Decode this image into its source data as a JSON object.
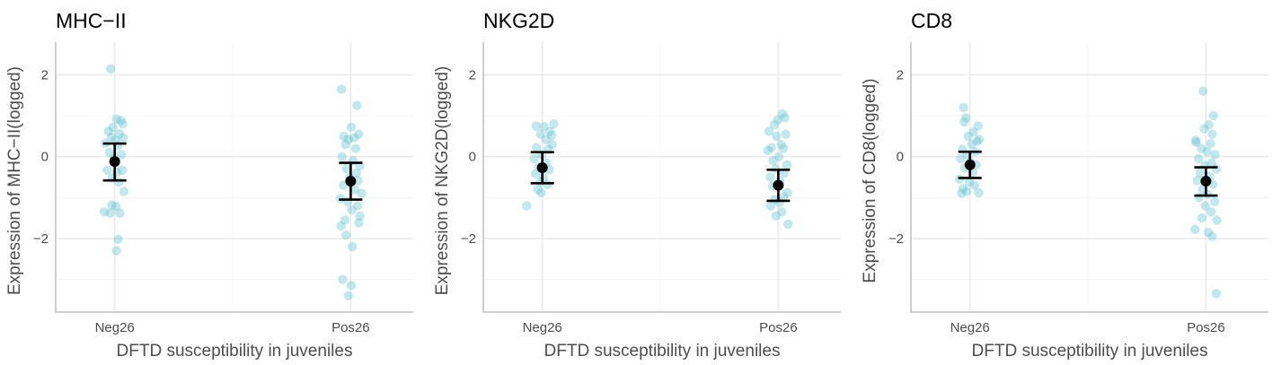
{
  "chart_data": [
    {
      "type": "scatter",
      "title": "MHC−II",
      "xlabel": "DFTD susceptibility in juveniles",
      "ylabel": "Expression of MHC−II(logged)",
      "categories": [
        "Neg26",
        "Pos26"
      ],
      "ylim": [
        -3.8,
        2.8
      ],
      "yticks": [
        -2,
        0,
        2
      ],
      "ytick_labels": [
        "−2",
        "0",
        "2"
      ],
      "point_color": "#66c2cf",
      "groups": [
        {
          "category": "Neg26",
          "mean": -0.12,
          "lower": -0.58,
          "upper": 0.32,
          "points": [
            {
              "jitter": -0.07,
              "y": 2.15
            },
            {
              "jitter": 0.03,
              "y": 0.92
            },
            {
              "jitter": 0.11,
              "y": 0.88
            },
            {
              "jitter": 0.14,
              "y": 0.8
            },
            {
              "jitter": -0.03,
              "y": 0.72
            },
            {
              "jitter": -0.11,
              "y": 0.62
            },
            {
              "jitter": 0.08,
              "y": 0.56
            },
            {
              "jitter": -0.06,
              "y": 0.48
            },
            {
              "jitter": 0.15,
              "y": 0.46
            },
            {
              "jitter": 0.01,
              "y": 0.4
            },
            {
              "jitter": -0.16,
              "y": 0.33
            },
            {
              "jitter": 0.05,
              "y": 0.26
            },
            {
              "jitter": -0.09,
              "y": 0.1
            },
            {
              "jitter": 0.12,
              "y": 0.05
            },
            {
              "jitter": -0.01,
              "y": -0.05
            },
            {
              "jitter": -0.13,
              "y": -0.33
            },
            {
              "jitter": 0.13,
              "y": -0.33
            },
            {
              "jitter": 0.04,
              "y": -0.38
            },
            {
              "jitter": -0.04,
              "y": -0.52
            },
            {
              "jitter": 0.07,
              "y": -0.62
            },
            {
              "jitter": 0.16,
              "y": -0.85
            },
            {
              "jitter": -0.05,
              "y": -1.18
            },
            {
              "jitter": 0.02,
              "y": -1.22
            },
            {
              "jitter": -0.18,
              "y": -1.35
            },
            {
              "jitter": -0.08,
              "y": -1.38
            },
            {
              "jitter": 0.09,
              "y": -1.38
            },
            {
              "jitter": 0.06,
              "y": -2.02
            },
            {
              "jitter": 0.03,
              "y": -2.3
            }
          ]
        },
        {
          "category": "Pos26",
          "mean": -0.6,
          "lower": -1.05,
          "upper": -0.15,
          "points": [
            {
              "jitter": -0.16,
              "y": 1.65
            },
            {
              "jitter": 0.11,
              "y": 1.25
            },
            {
              "jitter": 0.01,
              "y": 0.72
            },
            {
              "jitter": -0.12,
              "y": 0.5
            },
            {
              "jitter": -0.04,
              "y": 0.42
            },
            {
              "jitter": 0.06,
              "y": 0.46
            },
            {
              "jitter": 0.14,
              "y": 0.55
            },
            {
              "jitter": -0.09,
              "y": 0.3
            },
            {
              "jitter": 0.09,
              "y": 0.2
            },
            {
              "jitter": -0.15,
              "y": 0.0
            },
            {
              "jitter": 0.04,
              "y": -0.1
            },
            {
              "jitter": 0.16,
              "y": -0.22
            },
            {
              "jitter": -0.07,
              "y": -0.3
            },
            {
              "jitter": 0.1,
              "y": -0.4
            },
            {
              "jitter": -0.02,
              "y": -0.52
            },
            {
              "jitter": 0.13,
              "y": -0.58
            },
            {
              "jitter": -0.13,
              "y": -0.7
            },
            {
              "jitter": 0.07,
              "y": -0.8
            },
            {
              "jitter": 0.19,
              "y": -0.9
            },
            {
              "jitter": -0.18,
              "y": -1.02
            },
            {
              "jitter": -0.05,
              "y": -1.1
            },
            {
              "jitter": 0.12,
              "y": -1.2
            },
            {
              "jitter": 0.02,
              "y": -1.3
            },
            {
              "jitter": 0.16,
              "y": -1.45
            },
            {
              "jitter": -0.1,
              "y": -1.55
            },
            {
              "jitter": 0.14,
              "y": -1.62
            },
            {
              "jitter": -0.17,
              "y": -1.7
            },
            {
              "jitter": -0.08,
              "y": -1.92
            },
            {
              "jitter": 0.03,
              "y": -2.2
            },
            {
              "jitter": -0.14,
              "y": -3.0
            },
            {
              "jitter": 0.01,
              "y": -3.15
            },
            {
              "jitter": -0.04,
              "y": -3.4
            }
          ]
        }
      ]
    },
    {
      "type": "scatter",
      "title": "NKG2D",
      "xlabel": "DFTD susceptibility in juveniles",
      "ylabel": "Expression of NKG2D(logged)",
      "categories": [
        "Neg26",
        "Pos26"
      ],
      "ylim": [
        -3.8,
        2.8
      ],
      "yticks": [
        -2,
        0,
        2
      ],
      "ytick_labels": [
        "−2",
        "0",
        "2"
      ],
      "point_color": "#66c2cf",
      "groups": [
        {
          "category": "Neg26",
          "mean": -0.27,
          "lower": -0.65,
          "upper": 0.11,
          "points": [
            {
              "jitter": 0.2,
              "y": 0.8
            },
            {
              "jitter": -0.11,
              "y": 0.75
            },
            {
              "jitter": 0.03,
              "y": 0.74
            },
            {
              "jitter": 0.13,
              "y": 0.62
            },
            {
              "jitter": -0.03,
              "y": 0.55
            },
            {
              "jitter": 0.16,
              "y": 0.52
            },
            {
              "jitter": 0.06,
              "y": 0.42
            },
            {
              "jitter": 0.17,
              "y": 0.3
            },
            {
              "jitter": -0.1,
              "y": 0.22
            },
            {
              "jitter": 0.1,
              "y": 0.18
            },
            {
              "jitter": -0.01,
              "y": 0.05
            },
            {
              "jitter": -0.14,
              "y": -0.05
            },
            {
              "jitter": 0.07,
              "y": -0.15
            },
            {
              "jitter": -0.06,
              "y": -0.25
            },
            {
              "jitter": 0.12,
              "y": -0.32
            },
            {
              "jitter": -0.12,
              "y": -0.42
            },
            {
              "jitter": 0.02,
              "y": -0.52
            },
            {
              "jitter": -0.04,
              "y": -0.62
            },
            {
              "jitter": 0.09,
              "y": -0.68
            },
            {
              "jitter": -0.08,
              "y": -0.8
            },
            {
              "jitter": -0.02,
              "y": -0.88
            },
            {
              "jitter": -0.27,
              "y": -1.2
            }
          ]
        },
        {
          "category": "Pos26",
          "mean": -0.7,
          "lower": -1.08,
          "upper": -0.32,
          "points": [
            {
              "jitter": 0.07,
              "y": 1.05
            },
            {
              "jitter": 0.11,
              "y": 0.95
            },
            {
              "jitter": -0.01,
              "y": 0.9
            },
            {
              "jitter": -0.07,
              "y": 0.78
            },
            {
              "jitter": -0.16,
              "y": 0.62
            },
            {
              "jitter": 0.13,
              "y": 0.55
            },
            {
              "jitter": -0.03,
              "y": 0.5
            },
            {
              "jitter": 0.05,
              "y": 0.3
            },
            {
              "jitter": -0.12,
              "y": 0.22
            },
            {
              "jitter": 0.09,
              "y": 0.2
            },
            {
              "jitter": -0.18,
              "y": 0.15
            },
            {
              "jitter": 0.01,
              "y": 0.0
            },
            {
              "jitter": -0.09,
              "y": -0.1
            },
            {
              "jitter": 0.15,
              "y": -0.2
            },
            {
              "jitter": -0.05,
              "y": -0.3
            },
            {
              "jitter": 0.1,
              "y": -0.4
            },
            {
              "jitter": -0.14,
              "y": -0.5
            },
            {
              "jitter": 0.03,
              "y": -0.6
            },
            {
              "jitter": -0.1,
              "y": -0.72
            },
            {
              "jitter": 0.16,
              "y": -0.88
            },
            {
              "jitter": 0.09,
              "y": -0.98
            },
            {
              "jitter": -0.06,
              "y": -1.05
            },
            {
              "jitter": 0.02,
              "y": -1.12
            },
            {
              "jitter": -0.13,
              "y": -1.2
            },
            {
              "jitter": 0.06,
              "y": -1.35
            },
            {
              "jitter": -0.04,
              "y": -1.45
            },
            {
              "jitter": 0.17,
              "y": -1.65
            }
          ]
        }
      ]
    },
    {
      "type": "scatter",
      "title": "CD8",
      "xlabel": "DFTD susceptibility in juveniles",
      "ylabel": "Expression of CD8(logged)",
      "categories": [
        "Neg26",
        "Pos26"
      ],
      "ylim": [
        -3.8,
        2.8
      ],
      "yticks": [
        -2,
        0,
        2
      ],
      "ytick_labels": [
        "−2",
        "0",
        "2"
      ],
      "point_color": "#66c2cf",
      "groups": [
        {
          "category": "Neg26",
          "mean": -0.2,
          "lower": -0.52,
          "upper": 0.12,
          "points": [
            {
              "jitter": -0.11,
              "y": 1.2
            },
            {
              "jitter": -0.07,
              "y": 0.95
            },
            {
              "jitter": -0.1,
              "y": 0.85
            },
            {
              "jitter": 0.14,
              "y": 0.75
            },
            {
              "jitter": 0.06,
              "y": 0.6
            },
            {
              "jitter": -0.03,
              "y": 0.5
            },
            {
              "jitter": 0.16,
              "y": 0.42
            },
            {
              "jitter": 0.12,
              "y": 0.38
            },
            {
              "jitter": 0.03,
              "y": 0.3
            },
            {
              "jitter": -0.13,
              "y": 0.18
            },
            {
              "jitter": 0.09,
              "y": 0.12
            },
            {
              "jitter": -0.05,
              "y": 0.05
            },
            {
              "jitter": -0.16,
              "y": -0.05
            },
            {
              "jitter": 0.01,
              "y": -0.12
            },
            {
              "jitter": 0.11,
              "y": -0.2
            },
            {
              "jitter": -0.09,
              "y": -0.28
            },
            {
              "jitter": 0.05,
              "y": -0.38
            },
            {
              "jitter": -0.18,
              "y": -0.55
            },
            {
              "jitter": -0.01,
              "y": -0.62
            },
            {
              "jitter": 0.08,
              "y": -0.7
            },
            {
              "jitter": -0.12,
              "y": -0.78
            },
            {
              "jitter": -0.06,
              "y": -0.85
            },
            {
              "jitter": 0.15,
              "y": -0.88
            },
            {
              "jitter": -0.15,
              "y": -0.9
            }
          ]
        },
        {
          "category": "Pos26",
          "mean": -0.6,
          "lower": -0.95,
          "upper": -0.26,
          "points": [
            {
              "jitter": -0.05,
              "y": 1.6
            },
            {
              "jitter": 0.13,
              "y": 1.0
            },
            {
              "jitter": 0.05,
              "y": 0.78
            },
            {
              "jitter": -0.03,
              "y": 0.68
            },
            {
              "jitter": 0.11,
              "y": 0.55
            },
            {
              "jitter": -0.18,
              "y": 0.4
            },
            {
              "jitter": -0.17,
              "y": 0.35
            },
            {
              "jitter": 0.08,
              "y": 0.32
            },
            {
              "jitter": -0.08,
              "y": 0.2
            },
            {
              "jitter": 0.02,
              "y": 0.12
            },
            {
              "jitter": 0.16,
              "y": 0.05
            },
            {
              "jitter": -0.13,
              "y": -0.05
            },
            {
              "jitter": 0.1,
              "y": -0.15
            },
            {
              "jitter": -0.02,
              "y": -0.22
            },
            {
              "jitter": 0.18,
              "y": -0.3
            },
            {
              "jitter": -0.1,
              "y": -0.4
            },
            {
              "jitter": 0.06,
              "y": -0.48
            },
            {
              "jitter": -0.15,
              "y": -0.58
            },
            {
              "jitter": 0.12,
              "y": -0.68
            },
            {
              "jitter": -0.06,
              "y": -0.8
            },
            {
              "jitter": 0.03,
              "y": -0.92
            },
            {
              "jitter": -0.12,
              "y": -1.0
            },
            {
              "jitter": 0.15,
              "y": -1.1
            },
            {
              "jitter": -0.01,
              "y": -1.2
            },
            {
              "jitter": 0.09,
              "y": -1.35
            },
            {
              "jitter": -0.07,
              "y": -1.5
            },
            {
              "jitter": 0.19,
              "y": -1.55
            },
            {
              "jitter": -0.19,
              "y": -1.78
            },
            {
              "jitter": 0.04,
              "y": -1.85
            },
            {
              "jitter": 0.11,
              "y": -1.95
            },
            {
              "jitter": 0.18,
              "y": -3.35
            }
          ]
        }
      ]
    }
  ]
}
